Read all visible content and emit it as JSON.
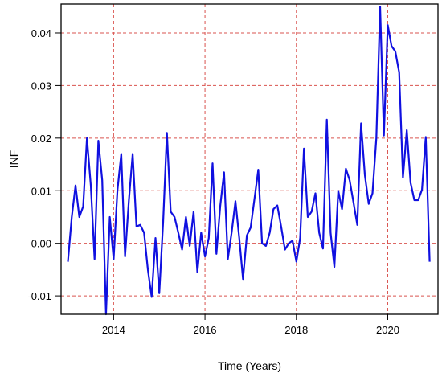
{
  "chart_data": {
    "type": "line",
    "title": "",
    "xlabel": "Time (Years)",
    "ylabel": "INF",
    "xlim": [
      2012.85,
      2021.1
    ],
    "ylim": [
      -0.0135,
      0.0455
    ],
    "xticks": [
      2014,
      2016,
      2018,
      2020
    ],
    "xtick_labels": [
      "2014",
      "2016",
      "2018",
      "2020"
    ],
    "yticks": [
      -0.01,
      0.0,
      0.01,
      0.02,
      0.03,
      0.04
    ],
    "ytick_labels": [
      "-0.01",
      "0.00",
      "0.01",
      "0.02",
      "0.03",
      "0.04"
    ],
    "grid": true,
    "grid_color": "#d9534f",
    "line_color": "#1010e0",
    "series": [
      {
        "start_year": 2013.0,
        "step_years": 0.0833333,
        "values": [
          -0.0035,
          0.005,
          0.011,
          0.005,
          0.007,
          0.02,
          0.011,
          -0.003,
          0.0195,
          0.012,
          -0.0135,
          0.005,
          -0.003,
          0.01,
          0.017,
          -0.0025,
          0.008,
          0.017,
          0.0032,
          0.0035,
          0.002,
          -0.005,
          -0.0102,
          0.001,
          -0.0095,
          0.004,
          0.021,
          0.006,
          0.005,
          0.002,
          -0.0012,
          0.005,
          -0.0005,
          0.006,
          -0.0055,
          0.002,
          -0.0025,
          0.001,
          0.0152,
          -0.002,
          0.007,
          0.0135,
          -0.003,
          0.002,
          0.008,
          0.001,
          -0.0068,
          0.0015,
          0.003,
          0.0085,
          0.014,
          0.0,
          -0.0005,
          0.002,
          0.0065,
          0.0072,
          0.0032,
          -0.0012,
          0.0,
          0.0005,
          -0.0035,
          0.001,
          0.018,
          0.005,
          0.006,
          0.0095,
          0.002,
          -0.001,
          0.0235,
          0.002,
          -0.0045,
          0.01,
          0.0065,
          0.0142,
          0.012,
          0.0078,
          0.0035,
          0.0228,
          0.013,
          0.0075,
          0.0095,
          0.02,
          0.045,
          0.0205,
          0.0415,
          0.0375,
          0.0365,
          0.0325,
          0.0125,
          0.0215,
          0.0115,
          0.0082,
          0.0082,
          0.0102,
          0.0202,
          -0.0035
        ]
      }
    ]
  }
}
